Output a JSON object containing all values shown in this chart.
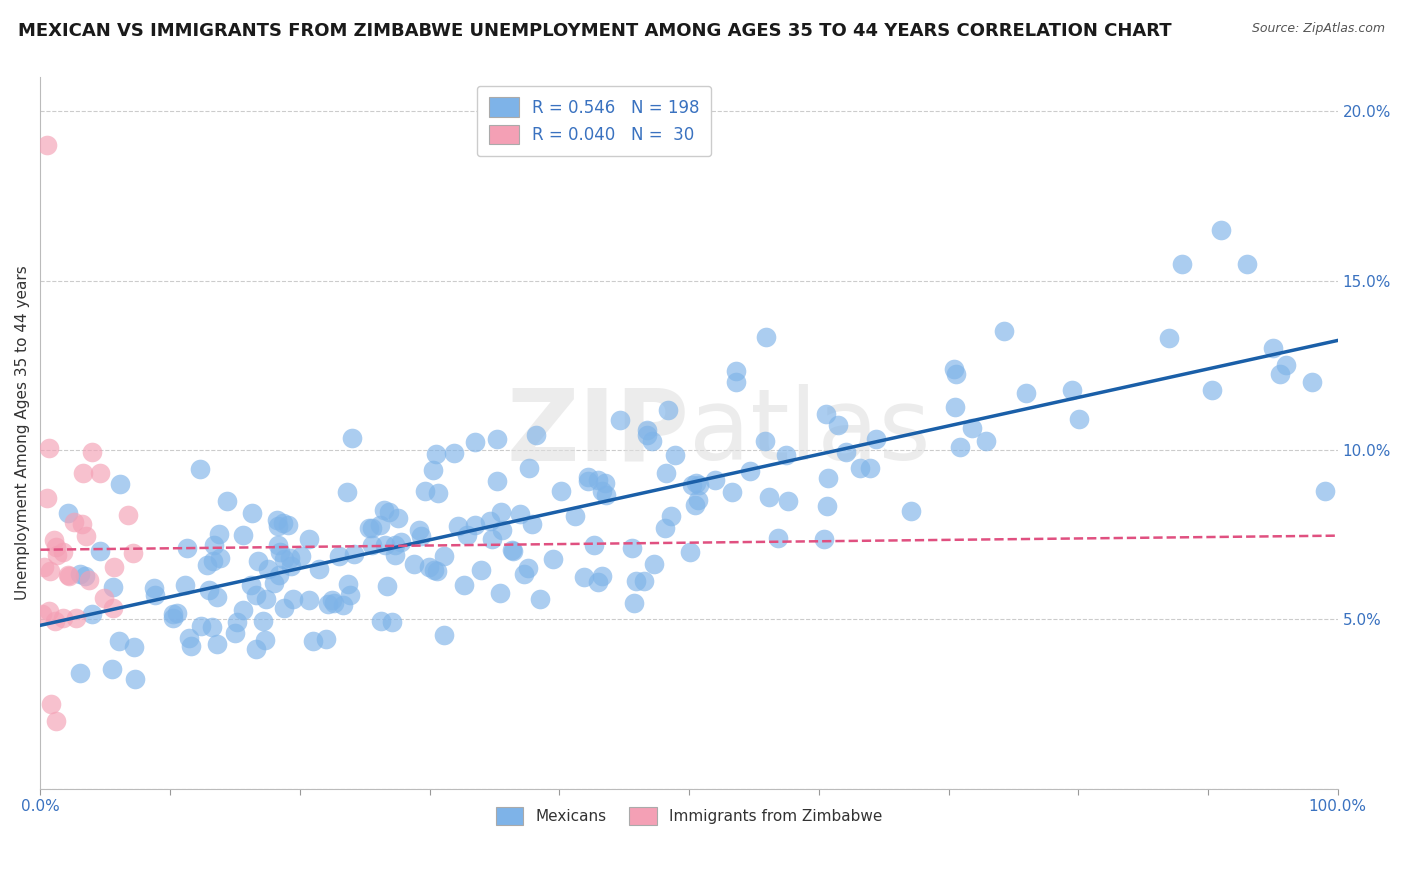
{
  "title": "MEXICAN VS IMMIGRANTS FROM ZIMBABWE UNEMPLOYMENT AMONG AGES 35 TO 44 YEARS CORRELATION CHART",
  "source": "Source: ZipAtlas.com",
  "ylabel": "Unemployment Among Ages 35 to 44 years",
  "xlim": [
    0,
    1.0
  ],
  "ylim": [
    0.0,
    0.21
  ],
  "yticks": [
    0.0,
    0.05,
    0.1,
    0.15,
    0.2
  ],
  "ytick_labels": [
    "",
    "5.0%",
    "10.0%",
    "15.0%",
    "20.0%"
  ],
  "xticks": [
    0.0,
    0.1,
    0.2,
    0.3,
    0.4,
    0.5,
    0.6,
    0.7,
    0.8,
    0.9,
    1.0
  ],
  "xtick_labels": [
    "0.0%",
    "",
    "",
    "",
    "",
    "",
    "",
    "",
    "",
    "",
    "100.0%"
  ],
  "mexicans_color": "#7eb3e8",
  "zimbabwe_color": "#f4a0b5",
  "mexicans_line_color": "#1a5fa8",
  "zimbabwe_line_color": "#e05080",
  "legend_R_mexicans": "0.546",
  "legend_N_mexicans": "198",
  "legend_R_zimbabwe": "0.040",
  "legend_N_zimbabwe": "30",
  "watermark_zip": "ZIP",
  "watermark_atlas": "atlas",
  "background_color": "#ffffff",
  "title_fontsize": 13,
  "axis_label_fontsize": 11,
  "tick_fontsize": 11
}
